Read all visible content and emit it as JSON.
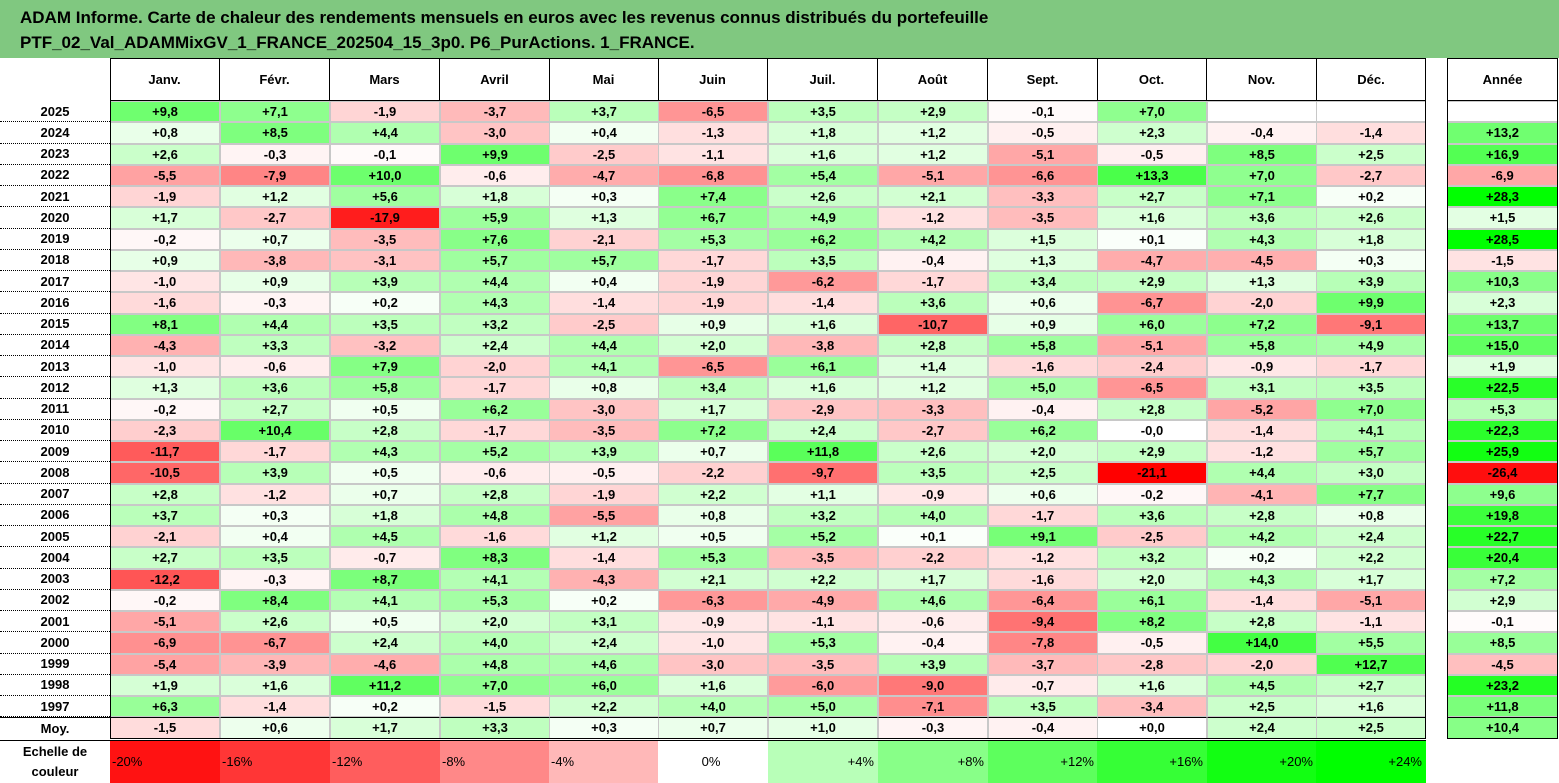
{
  "title_line1": "ADAM Informe. Carte de chaleur des rendements mensuels en euros avec les revenus connus distribués du portefeuille",
  "title_line2": "PTF_02_Val_ADAMMixGV_1_FRANCE_202504_15_3p0. P6_PurActions. 1_FRANCE.",
  "chart_data": {
    "type": "heatmap",
    "columns": [
      "Janv.",
      "Févr.",
      "Mars",
      "Avril",
      "Mai",
      "Juin",
      "Juil.",
      "Août",
      "Sept.",
      "Oct.",
      "Nov.",
      "Déc."
    ],
    "annual_header": "Année",
    "rows": [
      {
        "year": "2025",
        "values": [
          9.8,
          7.1,
          -1.9,
          -3.7,
          3.7,
          -6.5,
          3.5,
          2.9,
          -0.1,
          7.0,
          null,
          null
        ],
        "annual": null
      },
      {
        "year": "2024",
        "values": [
          0.8,
          8.5,
          4.4,
          -3.0,
          0.4,
          -1.3,
          1.8,
          1.2,
          -0.5,
          2.3,
          -0.4,
          -1.4
        ],
        "annual": 13.2
      },
      {
        "year": "2023",
        "values": [
          2.6,
          -0.3,
          -0.1,
          9.9,
          -2.5,
          -1.1,
          1.6,
          1.2,
          -5.1,
          -0.5,
          8.5,
          2.5
        ],
        "annual": 16.9
      },
      {
        "year": "2022",
        "values": [
          -5.5,
          -7.9,
          10.0,
          -0.6,
          -4.7,
          -6.8,
          5.4,
          -5.1,
          -6.6,
          13.3,
          7.0,
          -2.7
        ],
        "annual": -6.9
      },
      {
        "year": "2021",
        "values": [
          -1.9,
          1.2,
          5.6,
          1.8,
          0.3,
          7.4,
          2.6,
          2.1,
          -3.3,
          2.7,
          7.1,
          0.2
        ],
        "annual": 28.3
      },
      {
        "year": "2020",
        "values": [
          1.7,
          -2.7,
          -17.9,
          5.9,
          1.3,
          6.7,
          4.9,
          -1.2,
          -3.5,
          1.6,
          3.6,
          2.6
        ],
        "annual": 1.5
      },
      {
        "year": "2019",
        "values": [
          -0.2,
          0.7,
          -3.5,
          7.6,
          -2.1,
          5.3,
          6.2,
          4.2,
          1.5,
          0.1,
          4.3,
          1.8
        ],
        "annual": 28.5
      },
      {
        "year": "2018",
        "values": [
          0.9,
          -3.8,
          -3.1,
          5.7,
          5.7,
          -1.7,
          3.5,
          -0.4,
          1.3,
          -4.7,
          -4.5,
          0.3
        ],
        "annual": -1.5
      },
      {
        "year": "2017",
        "values": [
          -1.0,
          0.9,
          3.9,
          4.4,
          0.4,
          -1.9,
          -6.2,
          -1.7,
          3.4,
          2.9,
          1.3,
          3.9
        ],
        "annual": 10.3
      },
      {
        "year": "2016",
        "values": [
          -1.6,
          -0.3,
          0.2,
          4.3,
          -1.4,
          -1.9,
          -1.4,
          3.6,
          0.6,
          -6.7,
          -2.0,
          9.9
        ],
        "annual": 2.3
      },
      {
        "year": "2015",
        "values": [
          8.1,
          4.4,
          3.5,
          3.2,
          -2.5,
          0.9,
          1.6,
          -10.7,
          0.9,
          6.0,
          7.2,
          -9.1
        ],
        "annual": 13.7
      },
      {
        "year": "2014",
        "values": [
          -4.3,
          3.3,
          -3.2,
          2.4,
          4.4,
          2.0,
          -3.8,
          2.8,
          5.8,
          -5.1,
          5.8,
          4.9
        ],
        "annual": 15.0
      },
      {
        "year": "2013",
        "values": [
          -1.0,
          -0.6,
          7.9,
          -2.0,
          4.1,
          -6.5,
          6.1,
          1.4,
          -1.6,
          -2.4,
          -0.9,
          -1.7
        ],
        "annual": 1.9
      },
      {
        "year": "2012",
        "values": [
          1.3,
          3.6,
          5.8,
          -1.7,
          0.8,
          3.4,
          1.6,
          1.2,
          5.0,
          -6.5,
          3.1,
          3.5
        ],
        "annual": 22.5
      },
      {
        "year": "2011",
        "values": [
          -0.2,
          2.7,
          0.5,
          6.2,
          -3.0,
          1.7,
          -2.9,
          -3.3,
          -0.4,
          2.8,
          -5.2,
          7.0
        ],
        "annual": 5.3
      },
      {
        "year": "2010",
        "values": [
          -2.3,
          10.4,
          2.8,
          -1.7,
          -3.5,
          7.2,
          2.4,
          -2.7,
          6.2,
          -0.0,
          -1.4,
          4.1
        ],
        "annual": 22.3
      },
      {
        "year": "2009",
        "values": [
          -11.7,
          -1.7,
          4.3,
          5.2,
          3.9,
          0.7,
          11.8,
          2.6,
          2.0,
          2.9,
          -1.2,
          5.7
        ],
        "annual": 25.9
      },
      {
        "year": "2008",
        "values": [
          -10.5,
          3.9,
          0.5,
          -0.6,
          -0.5,
          -2.2,
          -9.7,
          3.5,
          2.5,
          -21.1,
          4.4,
          3.0
        ],
        "annual": -26.4
      },
      {
        "year": "2007",
        "values": [
          2.8,
          -1.2,
          0.7,
          2.8,
          -1.9,
          2.2,
          1.1,
          -0.9,
          0.6,
          -0.2,
          -4.1,
          7.7
        ],
        "annual": 9.6
      },
      {
        "year": "2006",
        "values": [
          3.7,
          0.3,
          1.8,
          4.8,
          -5.5,
          0.8,
          3.2,
          4.0,
          -1.7,
          3.6,
          2.8,
          0.8
        ],
        "annual": 19.8
      },
      {
        "year": "2005",
        "values": [
          -2.1,
          0.4,
          4.5,
          -1.6,
          1.2,
          0.5,
          5.2,
          0.1,
          9.1,
          -2.5,
          4.2,
          2.4
        ],
        "annual": 22.7
      },
      {
        "year": "2004",
        "values": [
          2.7,
          3.5,
          -0.7,
          8.3,
          -1.4,
          5.3,
          -3.5,
          -2.2,
          -1.2,
          3.2,
          0.2,
          2.2
        ],
        "annual": 20.4
      },
      {
        "year": "2003",
        "values": [
          -12.2,
          -0.3,
          8.7,
          4.1,
          -4.3,
          2.1,
          2.2,
          1.7,
          -1.6,
          2.0,
          4.3,
          1.7
        ],
        "annual": 7.2
      },
      {
        "year": "2002",
        "values": [
          -0.2,
          8.4,
          4.1,
          5.3,
          0.2,
          -6.3,
          -4.9,
          4.6,
          -6.4,
          6.1,
          -1.4,
          -5.1
        ],
        "annual": 2.9
      },
      {
        "year": "2001",
        "values": [
          -5.1,
          2.6,
          0.5,
          2.0,
          3.1,
          -0.9,
          -1.1,
          -0.6,
          -9.4,
          8.2,
          2.8,
          -1.1
        ],
        "annual": -0.1
      },
      {
        "year": "2000",
        "values": [
          -6.9,
          -6.7,
          2.4,
          4.0,
          2.4,
          -1.0,
          5.3,
          -0.4,
          -7.8,
          -0.5,
          14.0,
          5.5
        ],
        "annual": 8.5
      },
      {
        "year": "1999",
        "values": [
          -5.4,
          -3.9,
          -4.6,
          4.8,
          4.6,
          -3.0,
          -3.5,
          3.9,
          -3.7,
          -2.8,
          -2.0,
          12.7
        ],
        "annual": -4.5
      },
      {
        "year": "1998",
        "values": [
          1.9,
          1.6,
          11.2,
          7.0,
          6.0,
          1.6,
          -6.0,
          -9.0,
          -0.7,
          1.6,
          4.5,
          2.7
        ],
        "annual": 23.2
      },
      {
        "year": "1997",
        "values": [
          6.3,
          -1.4,
          0.2,
          -1.5,
          2.2,
          4.0,
          5.0,
          -7.1,
          3.5,
          -3.4,
          2.5,
          1.6
        ],
        "annual": 11.8
      }
    ],
    "average": {
      "label": "Moy.",
      "values": [
        -1.5,
        0.6,
        1.7,
        3.3,
        0.3,
        0.7,
        1.0,
        -0.3,
        -0.4,
        0.0,
        2.4,
        2.5
      ],
      "annual": 10.4
    },
    "scale_label_line1": "Echelle de",
    "scale_label_line2": "couleur",
    "scale": [
      {
        "label": "-20%",
        "value": -20
      },
      {
        "label": "-16%",
        "value": -16
      },
      {
        "label": "-12%",
        "value": -12
      },
      {
        "label": "-8%",
        "value": -8
      },
      {
        "label": "-4%",
        "value": -4
      },
      {
        "label": "0%",
        "value": 0
      },
      {
        "label": "+4%",
        "value": 4
      },
      {
        "label": "+8%",
        "value": 8
      },
      {
        "label": "+12%",
        "value": 12
      },
      {
        "label": "+16%",
        "value": 16
      },
      {
        "label": "+20%",
        "value": 20
      },
      {
        "label": "+24%",
        "value": 24
      }
    ],
    "colors": {
      "negative_max": "#ff0000",
      "neutral": "#ffffff",
      "positive_max": "#00ff00"
    }
  }
}
